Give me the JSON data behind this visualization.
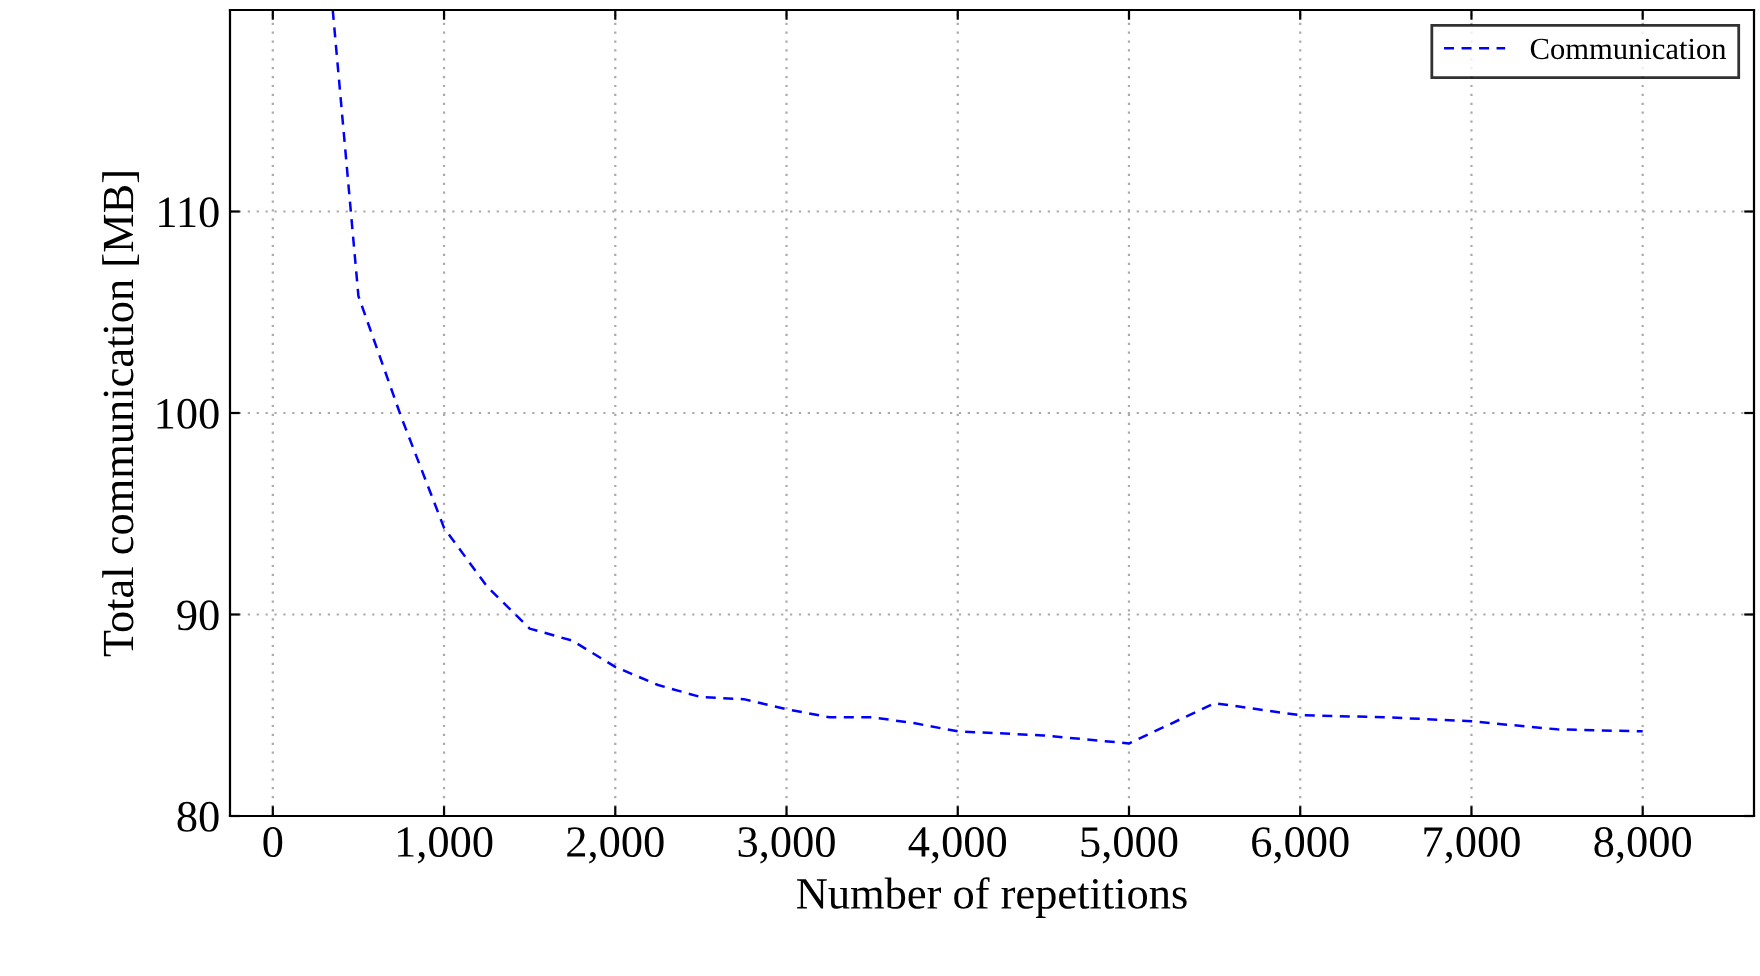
{
  "chart_data": {
    "type": "line",
    "xlabel": "Number of repetitions",
    "ylabel": "Total communication [MB]",
    "series": [
      {
        "name": "Communication",
        "color": "#0000ff",
        "x": [
          350,
          500,
          750,
          1000,
          1250,
          1500,
          1750,
          2000,
          2250,
          2500,
          2750,
          3000,
          3250,
          3500,
          3750,
          4000,
          4500,
          5000,
          5500,
          6000,
          6500,
          7000,
          7500,
          8000
        ],
        "values": [
          120,
          105.8,
          99.8,
          94.3,
          91.4,
          89.3,
          88.7,
          87.4,
          86.5,
          85.9,
          85.8,
          85.3,
          84.9,
          84.9,
          84.6,
          84.2,
          84.0,
          83.6,
          85.6,
          85.0,
          84.9,
          84.7,
          84.3,
          84.2
        ]
      }
    ],
    "xlim": [
      -250,
      8650
    ],
    "ylim": [
      80,
      120
    ],
    "xticks": [
      0,
      {
        "value": 1000,
        "label": "1,000"
      },
      {
        "value": 2000,
        "label": "2,000"
      },
      {
        "value": 3000,
        "label": "3,000"
      },
      {
        "value": 4000,
        "label": "4,000"
      },
      {
        "value": 5000,
        "label": "5,000"
      },
      {
        "value": 6000,
        "label": "6,000"
      },
      {
        "value": 7000,
        "label": "7,000"
      },
      {
        "value": 8000,
        "label": "8,000"
      }
    ],
    "yticks": [
      80,
      90,
      100,
      110
    ],
    "grid": true,
    "legend": "top right",
    "marker": "none",
    "line_style": "dashed"
  }
}
